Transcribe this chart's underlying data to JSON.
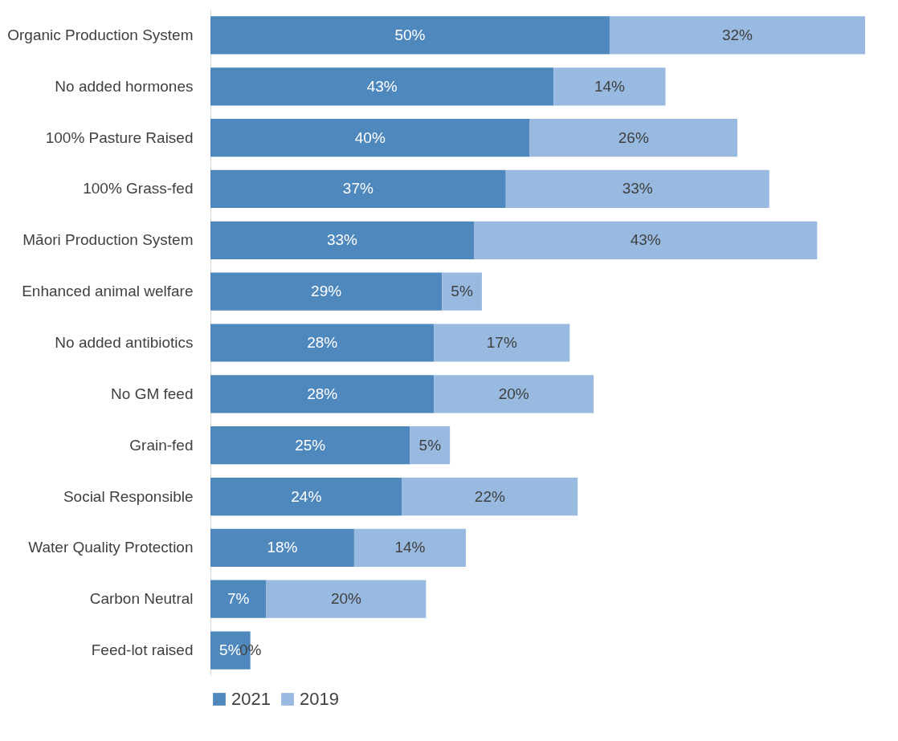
{
  "chart_data": {
    "type": "bar",
    "orientation": "horizontal",
    "stacked": true,
    "legend": "bottom",
    "tick_labels": "y",
    "categories": [
      "Organic Production System",
      "No added hormones",
      "100% Pasture Raised",
      "100% Grass-fed",
      "Māori Production System",
      "Enhanced animal welfare",
      "No added antibiotics",
      "No GM feed",
      "Grain-fed",
      "Social Responsible ",
      "Water Quality Protection",
      "Carbon Neutral",
      "Feed-lot raised"
    ],
    "series": [
      {
        "name": "2021",
        "color": "#4f88bd",
        "values": [
          50,
          43,
          40,
          37,
          33,
          29,
          28,
          28,
          25,
          24,
          18,
          7,
          5
        ],
        "value_labels": [
          "50%",
          "43%",
          "40%",
          "37%",
          "33%",
          "29%",
          "28%",
          "28%",
          "25%",
          "24%",
          "18%",
          "7%",
          "5%"
        ]
      },
      {
        "name": "2019",
        "color": "#98b9e0",
        "values": [
          32,
          14,
          26,
          33,
          43,
          5,
          17,
          20,
          5,
          22,
          14,
          20,
          0
        ],
        "value_labels": [
          "32%",
          "14%",
          "26%",
          "33%",
          "43%",
          "5%",
          "17%",
          "20%",
          "5%",
          "22%",
          "14%",
          "20%",
          "0%"
        ]
      }
    ]
  }
}
